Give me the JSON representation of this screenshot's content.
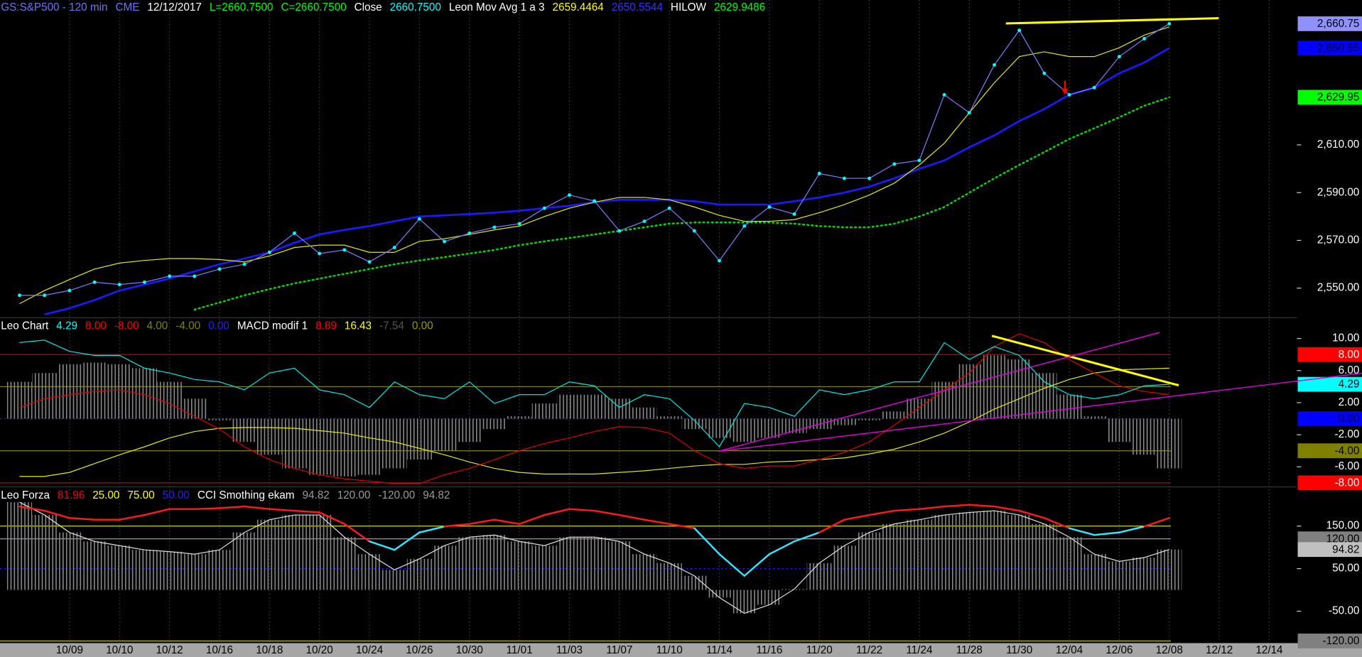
{
  "chart_data": [
    {
      "type": "line",
      "legend": [
        {
          "text": "GS:S&P500 - 120 min",
          "color": "#6f6fff"
        },
        {
          "text": "CME",
          "color": "#6f6fff"
        },
        {
          "text": "12/12/2017",
          "color": "#ffffff"
        },
        {
          "text": "L=2660.7500",
          "color": "#00ff00"
        },
        {
          "text": "C=2660.7500",
          "color": "#00ff00"
        },
        {
          "text": "Close",
          "color": "#ffffff"
        },
        {
          "text": "2660.7500",
          "color": "#00ffff"
        },
        {
          "text": "Leon Mov Avg 1 a 3",
          "color": "#ffffff"
        },
        {
          "text": "2659.4464",
          "color": "#ffff00"
        },
        {
          "text": "2650.5544",
          "color": "#3333ff"
        },
        {
          "text": "HILOW",
          "color": "#ffffff"
        },
        {
          "text": "2629.9486",
          "color": "#00ff00"
        }
      ],
      "ylim": [
        2538,
        2670.7
      ],
      "yticks": [
        {
          "value": 2550,
          "label": "2,550.00"
        },
        {
          "value": 2570,
          "label": "2,570.00"
        },
        {
          "value": 2590,
          "label": "2,590.00"
        },
        {
          "value": 2610,
          "label": "2,610.00"
        }
      ],
      "series": [
        {
          "style": "dotted",
          "color": "#00dd00",
          "values": [
            null,
            null,
            null,
            null,
            null,
            null,
            null,
            2541,
            2544,
            2547,
            2549.6,
            2552,
            2554,
            2556,
            2558,
            2560,
            2561.6,
            2563,
            2564.5,
            2566,
            2568,
            2569.6,
            2571,
            2572.5,
            2574,
            2575.5,
            2577,
            2577.5,
            2577.5,
            2577.5,
            2577.5,
            2577,
            2576,
            2575.5,
            2575.5,
            2577,
            2580,
            2584,
            2590,
            2596,
            2601.6,
            2607,
            2612.5,
            2617,
            2621.6,
            2626.4,
            2629.95,
            null,
            null,
            null,
            null,
            null
          ]
        },
        {
          "style": "line",
          "color": "#1a1aff",
          "width": 2.2,
          "values": [
            null,
            2539,
            2541.6,
            2545,
            2549,
            2551.5,
            2554,
            2557,
            2560,
            2562.4,
            2565,
            2569,
            2572.5,
            2574.4,
            2576,
            2578,
            2580,
            2580.5,
            2581,
            2581.6,
            2582.4,
            2583.5,
            2584.5,
            2586,
            2587,
            2587,
            2587,
            2586.4,
            2585,
            2585,
            2585,
            2586.4,
            2588,
            2590,
            2592.5,
            2596,
            2600,
            2603.5,
            2609,
            2614,
            2620,
            2625,
            2631,
            2634,
            2640,
            2644.5,
            2650.55,
            null,
            null,
            null,
            null,
            null
          ]
        },
        {
          "style": "line",
          "color": "#e6e600",
          "width": 1,
          "values": [
            2543.5,
            2549,
            2553.6,
            2558,
            2560.5,
            2561.6,
            2562.4,
            2562.4,
            2562,
            2561,
            2563.5,
            2567,
            2568,
            2568,
            2565,
            2565,
            2569.6,
            2570.7,
            2572.5,
            2574.4,
            2576,
            2580,
            2583.5,
            2586,
            2588,
            2588,
            2587,
            2584,
            2580.5,
            2578,
            2578,
            2578.7,
            2581.6,
            2585,
            2589,
            2594,
            2601.6,
            2610.7,
            2623.5,
            2636,
            2647,
            2649,
            2647,
            2647,
            2650.7,
            2656,
            2659.45,
            null,
            null,
            null,
            null,
            null
          ]
        },
        {
          "style": "markers",
          "color": "#7b7bff",
          "marker_color": "#00ffff",
          "values": [
            2547,
            2547,
            2549,
            2552.5,
            2551.5,
            2552.5,
            2555,
            2555,
            2558,
            2560,
            2565,
            2573,
            2564.5,
            2566,
            2561,
            2567,
            2579,
            2569.5,
            2573,
            2575.5,
            2577,
            2583.5,
            2589,
            2586.5,
            2574,
            2578,
            2583.5,
            2574,
            2561.5,
            2576,
            2584,
            2581,
            2598,
            2596,
            2596,
            2602,
            2603.5,
            2631,
            2623.5,
            2643.5,
            2658,
            2640,
            2631,
            2634,
            2647,
            2654.5,
            2660.75,
            null,
            null,
            null,
            null,
            null
          ]
        }
      ],
      "last_labels": [
        {
          "value": 2660.75,
          "label": "2,660.75",
          "bg": "#9090ff",
          "text_color": "#000000"
        },
        {
          "value": 2650.55,
          "label": "2,650.55",
          "bg": "#0000ff",
          "text_color": "#000033"
        },
        {
          "value": 2629.95,
          "label": "2,629.95",
          "bg": "#00ff00",
          "text_color": "#000000"
        }
      ]
    },
    {
      "type": "line",
      "legend": [
        {
          "text": "Leo Chart",
          "color": "#ffffff"
        },
        {
          "text": "4.29",
          "color": "#00ffff"
        },
        {
          "text": "8.00",
          "color": "#ff0000"
        },
        {
          "text": "-8.00",
          "color": "#ff0000"
        },
        {
          "text": "4.00",
          "color": "#808000"
        },
        {
          "text": "-4.00",
          "color": "#808000"
        },
        {
          "text": "0.00",
          "color": "#2020ff"
        },
        {
          "text": "MACD modif 1",
          "color": "#ffffff"
        },
        {
          "text": "8.89",
          "color": "#ff0000"
        },
        {
          "text": "16.43",
          "color": "#ffff00"
        },
        {
          "text": "-7.54",
          "color": "#555555"
        },
        {
          "text": "0.00",
          "color": "#999900"
        }
      ],
      "ylim": [
        -8.4,
        12.5
      ],
      "yticks": [
        {
          "value": 10,
          "label": "10.00"
        },
        {
          "value": 6,
          "label": "6.00"
        },
        {
          "value": 2,
          "label": "2.00"
        },
        {
          "value": -2,
          "label": "-2.00"
        },
        {
          "value": -6,
          "label": "-6.00"
        }
      ],
      "levels": [
        {
          "value": 8,
          "label": "8.00",
          "color": "#cc0000",
          "bg": "#ff0000",
          "text_color": "#ffffff"
        },
        {
          "value": 4,
          "color": "#808000"
        },
        {
          "value": 0,
          "label": "0.00",
          "color": "#2020ff",
          "dash": true,
          "bg": "#0000ff",
          "text_color": "#000033"
        },
        {
          "value": -4,
          "label": "-4.00",
          "color": "#808000",
          "bg": "#808000",
          "text_color": "#000000"
        },
        {
          "value": -8,
          "label": "-8.00",
          "color": "#cc0000",
          "bg": "#ff0000",
          "text_color": "#ffffff"
        }
      ],
      "series": [
        {
          "style": "histogram",
          "color": "#8a8a8a",
          "values": [
            4.6,
            5.7,
            6.8,
            7.0,
            6.8,
            6.3,
            4.6,
            2.5,
            -0.2,
            -2.9,
            -4.5,
            -6.2,
            -7.0,
            -7.2,
            -7.0,
            -6.2,
            -5.1,
            -4.0,
            -2.9,
            -1.3,
            0.3,
            1.9,
            3.0,
            3.0,
            2.5,
            1.4,
            0.3,
            -1.3,
            -2.4,
            -2.9,
            -2.4,
            -1.8,
            -1.3,
            -0.8,
            -0.2,
            0.9,
            2.5,
            4.6,
            6.8,
            7.9,
            7.4,
            5.7,
            3.0,
            0.3,
            -2.9,
            -4.5,
            -6.2,
            null,
            null,
            null,
            null,
            null
          ]
        },
        {
          "style": "line",
          "color": "#e6e600",
          "width": 1,
          "values": [
            -7.2,
            -7.2,
            -6.7,
            -5.6,
            -4.5,
            -3.5,
            -2.4,
            -1.6,
            -1.2,
            -1.1,
            -1.1,
            -1.2,
            -1.5,
            -1.8,
            -2.4,
            -2.9,
            -3.7,
            -4.5,
            -5.4,
            -6.2,
            -6.7,
            -6.9,
            -6.9,
            -6.9,
            -6.7,
            -6.5,
            -6.2,
            -5.9,
            -5.7,
            -5.7,
            -5.4,
            -5.3,
            -5.1,
            -4.9,
            -4.4,
            -3.8,
            -2.9,
            -1.8,
            -0.4,
            1.2,
            2.5,
            3.8,
            4.9,
            5.7,
            6.1,
            6.2,
            6.3,
            null,
            null,
            null,
            null,
            null
          ]
        },
        {
          "style": "line",
          "color": "#e00000",
          "width": 1,
          "values": [
            1.4,
            2.5,
            3.0,
            3.4,
            3.6,
            3.0,
            1.9,
            0.3,
            -1.3,
            -3.5,
            -5.1,
            -6.2,
            -7.0,
            -7.5,
            -7.8,
            -8.1,
            -8.1,
            -7.0,
            -6.2,
            -5.1,
            -4.0,
            -3.1,
            -2.4,
            -1.6,
            -1.0,
            -1.1,
            -1.8,
            -4.0,
            -5.6,
            -6.2,
            -5.9,
            -5.9,
            -5.1,
            -4.2,
            -2.9,
            -0.8,
            1.4,
            3.6,
            5.7,
            9.0,
            10.6,
            9.5,
            7.4,
            5.7,
            4.1,
            3.4,
            3.0,
            null,
            null,
            null,
            null,
            null
          ]
        },
        {
          "style": "line",
          "color": "#00e5e5",
          "width": 1,
          "values": [
            9.5,
            9.8,
            8.4,
            7.9,
            7.9,
            6.3,
            5.7,
            4.9,
            4.6,
            3.6,
            5.7,
            6.3,
            3.6,
            3.0,
            1.4,
            4.6,
            3.0,
            2.5,
            4.6,
            1.9,
            3.0,
            3.0,
            4.6,
            4.1,
            1.4,
            3.0,
            2.5,
            -0.2,
            -3.5,
            1.9,
            1.4,
            0.3,
            3.6,
            3.0,
            3.6,
            4.6,
            4.6,
            9.5,
            7.4,
            9.0,
            7.9,
            4.6,
            3.0,
            2.5,
            3.0,
            4.1,
            4.29,
            null,
            null,
            null,
            null,
            null
          ]
        }
      ],
      "last_labels": [
        {
          "value": 4.29,
          "label": "4.29",
          "bg": "#00ffff",
          "text_color": "#000000"
        }
      ]
    },
    {
      "type": "line",
      "legend": [
        {
          "text": "Leo Forza",
          "color": "#ffffff"
        },
        {
          "text": "81.96",
          "color": "#ff0000"
        },
        {
          "text": "25.00",
          "color": "#ffff00"
        },
        {
          "text": "75.00",
          "color": "#ffff00"
        },
        {
          "text": "50.00",
          "color": "#2020ff"
        },
        {
          "text": "CCI Smothing ekam",
          "color": "#ffffff"
        },
        {
          "text": "94.82",
          "color": "#999999"
        },
        {
          "text": "120.00",
          "color": "#999999"
        },
        {
          "text": "-120.00",
          "color": "#999999"
        },
        {
          "text": "94.82",
          "color": "#999999"
        }
      ],
      "ylim": [
        -123,
        240
      ],
      "yticks": [
        {
          "value": 150,
          "label": "150.00"
        },
        {
          "value": 50,
          "label": "50.00"
        },
        {
          "value": -50,
          "label": "-50.00"
        }
      ],
      "levels": [
        {
          "value": 150,
          "color": "#cccc00"
        },
        {
          "value": 120,
          "label": "120.00",
          "color": "#999999",
          "bg": "#808080",
          "text_color": "#000000"
        },
        {
          "value": 50,
          "color": "#2020ff",
          "dash": true
        },
        {
          "value": -120,
          "label": "-120.00",
          "color": "#cccc00",
          "bg": "#808080",
          "text_color": "#000000"
        }
      ],
      "categories": [
        null,
        null,
        "10/09",
        null,
        "10/10",
        null,
        "10/12",
        null,
        "10/16",
        null,
        "10/18",
        null,
        "10/20",
        null,
        "10/24",
        null,
        "10/26",
        null,
        "10/30",
        null,
        "11/01",
        null,
        "11/03",
        null,
        "11/07",
        null,
        "11/10",
        null,
        "11/14",
        null,
        "11/16",
        null,
        "11/20",
        null,
        "11/22",
        null,
        "11/24",
        null,
        "11/28",
        null,
        "11/30",
        null,
        "12/04",
        null,
        "12/06",
        null,
        "12/08",
        null,
        "12/12",
        null,
        "12/14",
        null
      ],
      "series": [
        {
          "style": "histogram",
          "color": "#8a8a8a",
          "values": [
            206,
            176,
            135,
            114,
            104,
            94,
            90,
            84,
            94,
            135,
            165,
            176,
            176,
            124,
            84,
            47,
            73,
            104,
            124,
            129,
            114,
            104,
            124,
            124,
            114,
            84,
            63,
            33,
            -18,
            -55,
            -35,
            2,
            63,
            104,
            135,
            155,
            165,
            176,
            182,
            186,
            176,
            155,
            124,
            84,
            67,
            76,
            94.82,
            null,
            null,
            null,
            null,
            null
          ]
        },
        {
          "style": "line",
          "color": "#dddddd",
          "width": 1,
          "values": [
            206,
            176,
            135,
            114,
            104,
            94,
            90,
            84,
            94,
            135,
            165,
            176,
            176,
            124,
            84,
            47,
            73,
            104,
            124,
            129,
            114,
            104,
            124,
            124,
            114,
            84,
            63,
            33,
            -18,
            -55,
            -35,
            2,
            63,
            104,
            135,
            155,
            165,
            176,
            182,
            186,
            176,
            155,
            124,
            84,
            67,
            76,
            94.82,
            null,
            null,
            null,
            null,
            null
          ]
        },
        {
          "style": "two-tone",
          "color": "#ff1a1a",
          "color_below": "#33e5ff",
          "width": 2,
          "values": [
            196,
            186,
            169,
            165,
            165,
            176,
            190,
            190,
            192,
            196,
            190,
            186,
            182,
            155,
            114,
            94,
            135,
            149,
            155,
            165,
            155,
            176,
            190,
            186,
            176,
            165,
            155,
            145,
            84,
            33,
            84,
            114,
            135,
            165,
            176,
            186,
            190,
            196,
            200,
            196,
            186,
            169,
            145,
            129,
            135,
            149,
            169,
            null,
            null,
            null,
            null,
            null
          ]
        }
      ],
      "last_labels": [
        {
          "value": 94.82,
          "label": "94.82",
          "bg": "#c0c0c0",
          "text_color": "#000000"
        }
      ]
    }
  ]
}
